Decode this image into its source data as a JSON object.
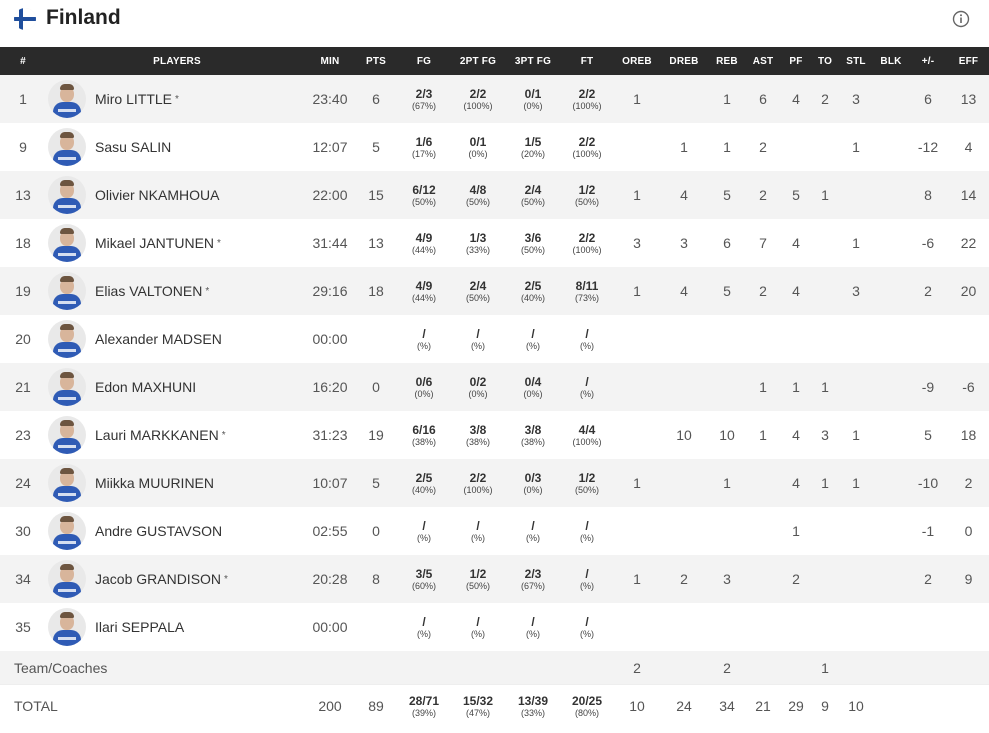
{
  "team": {
    "name": "Finland",
    "flag_icon": "finland-flag-icon",
    "info_icon": "info-icon"
  },
  "columns": [
    "#",
    "PLAYERS",
    "MIN",
    "PTS",
    "FG",
    "2PT FG",
    "3PT FG",
    "FT",
    "OREB",
    "DREB",
    "REB",
    "AST",
    "PF",
    "TO",
    "STL",
    "BLK",
    "+/-",
    "EFF"
  ],
  "players": [
    {
      "no": "1",
      "name": "Miro LITTLE",
      "starter": "*",
      "min": "23:40",
      "pts": "6",
      "fg": "2/3",
      "fg_pct": "(67%)",
      "fg2": "2/2",
      "fg2_pct": "(100%)",
      "fg3": "0/1",
      "fg3_pct": "(0%)",
      "ft": "2/2",
      "ft_pct": "(100%)",
      "oreb": "1",
      "dreb": "",
      "reb": "1",
      "ast": "6",
      "pf": "4",
      "to": "2",
      "stl": "3",
      "blk": "",
      "pm": "6",
      "eff": "13"
    },
    {
      "no": "9",
      "name": "Sasu SALIN",
      "starter": "",
      "min": "12:07",
      "pts": "5",
      "fg": "1/6",
      "fg_pct": "(17%)",
      "fg2": "0/1",
      "fg2_pct": "(0%)",
      "fg3": "1/5",
      "fg3_pct": "(20%)",
      "ft": "2/2",
      "ft_pct": "(100%)",
      "oreb": "",
      "dreb": "1",
      "reb": "1",
      "ast": "2",
      "pf": "",
      "to": "",
      "stl": "1",
      "blk": "",
      "pm": "-12",
      "eff": "4"
    },
    {
      "no": "13",
      "name": "Olivier NKAMHOUA",
      "starter": "",
      "min": "22:00",
      "pts": "15",
      "fg": "6/12",
      "fg_pct": "(50%)",
      "fg2": "4/8",
      "fg2_pct": "(50%)",
      "fg3": "2/4",
      "fg3_pct": "(50%)",
      "ft": "1/2",
      "ft_pct": "(50%)",
      "oreb": "1",
      "dreb": "4",
      "reb": "5",
      "ast": "2",
      "pf": "5",
      "to": "1",
      "stl": "",
      "blk": "",
      "pm": "8",
      "eff": "14"
    },
    {
      "no": "18",
      "name": "Mikael JANTUNEN",
      "starter": "*",
      "min": "31:44",
      "pts": "13",
      "fg": "4/9",
      "fg_pct": "(44%)",
      "fg2": "1/3",
      "fg2_pct": "(33%)",
      "fg3": "3/6",
      "fg3_pct": "(50%)",
      "ft": "2/2",
      "ft_pct": "(100%)",
      "oreb": "3",
      "dreb": "3",
      "reb": "6",
      "ast": "7",
      "pf": "4",
      "to": "",
      "stl": "1",
      "blk": "",
      "pm": "-6",
      "eff": "22"
    },
    {
      "no": "19",
      "name": "Elias VALTONEN",
      "starter": "*",
      "min": "29:16",
      "pts": "18",
      "fg": "4/9",
      "fg_pct": "(44%)",
      "fg2": "2/4",
      "fg2_pct": "(50%)",
      "fg3": "2/5",
      "fg3_pct": "(40%)",
      "ft": "8/11",
      "ft_pct": "(73%)",
      "oreb": "1",
      "dreb": "4",
      "reb": "5",
      "ast": "2",
      "pf": "4",
      "to": "",
      "stl": "3",
      "blk": "",
      "pm": "2",
      "eff": "20"
    },
    {
      "no": "20",
      "name": "Alexander MADSEN",
      "starter": "",
      "min": "00:00",
      "pts": "",
      "fg": "/",
      "fg_pct": "(%)",
      "fg2": "/",
      "fg2_pct": "(%)",
      "fg3": "/",
      "fg3_pct": "(%)",
      "ft": "/",
      "ft_pct": "(%)",
      "oreb": "",
      "dreb": "",
      "reb": "",
      "ast": "",
      "pf": "",
      "to": "",
      "stl": "",
      "blk": "",
      "pm": "",
      "eff": ""
    },
    {
      "no": "21",
      "name": "Edon MAXHUNI",
      "starter": "",
      "min": "16:20",
      "pts": "0",
      "fg": "0/6",
      "fg_pct": "(0%)",
      "fg2": "0/2",
      "fg2_pct": "(0%)",
      "fg3": "0/4",
      "fg3_pct": "(0%)",
      "ft": "/",
      "ft_pct": "(%)",
      "oreb": "",
      "dreb": "",
      "reb": "",
      "ast": "1",
      "pf": "1",
      "to": "1",
      "stl": "",
      "blk": "",
      "pm": "-9",
      "eff": "-6"
    },
    {
      "no": "23",
      "name": "Lauri MARKKANEN",
      "starter": "*",
      "min": "31:23",
      "pts": "19",
      "fg": "6/16",
      "fg_pct": "(38%)",
      "fg2": "3/8",
      "fg2_pct": "(38%)",
      "fg3": "3/8",
      "fg3_pct": "(38%)",
      "ft": "4/4",
      "ft_pct": "(100%)",
      "oreb": "",
      "dreb": "10",
      "reb": "10",
      "ast": "1",
      "pf": "4",
      "to": "3",
      "stl": "1",
      "blk": "",
      "pm": "5",
      "eff": "18"
    },
    {
      "no": "24",
      "name": "Miikka MUURINEN",
      "starter": "",
      "min": "10:07",
      "pts": "5",
      "fg": "2/5",
      "fg_pct": "(40%)",
      "fg2": "2/2",
      "fg2_pct": "(100%)",
      "fg3": "0/3",
      "fg3_pct": "(0%)",
      "ft": "1/2",
      "ft_pct": "(50%)",
      "oreb": "1",
      "dreb": "",
      "reb": "1",
      "ast": "",
      "pf": "4",
      "to": "1",
      "stl": "1",
      "blk": "",
      "pm": "-10",
      "eff": "2"
    },
    {
      "no": "30",
      "name": "Andre GUSTAVSON",
      "starter": "",
      "min": "02:55",
      "pts": "0",
      "fg": "/",
      "fg_pct": "(%)",
      "fg2": "/",
      "fg2_pct": "(%)",
      "fg3": "/",
      "fg3_pct": "(%)",
      "ft": "/",
      "ft_pct": "(%)",
      "oreb": "",
      "dreb": "",
      "reb": "",
      "ast": "",
      "pf": "1",
      "to": "",
      "stl": "",
      "blk": "",
      "pm": "-1",
      "eff": "0"
    },
    {
      "no": "34",
      "name": "Jacob GRANDISON",
      "starter": "*",
      "min": "20:28",
      "pts": "8",
      "fg": "3/5",
      "fg_pct": "(60%)",
      "fg2": "1/2",
      "fg2_pct": "(50%)",
      "fg3": "2/3",
      "fg3_pct": "(67%)",
      "ft": "/",
      "ft_pct": "(%)",
      "oreb": "1",
      "dreb": "2",
      "reb": "3",
      "ast": "",
      "pf": "2",
      "to": "",
      "stl": "",
      "blk": "",
      "pm": "2",
      "eff": "9"
    },
    {
      "no": "35",
      "name": "Ilari SEPPALA",
      "starter": "",
      "min": "00:00",
      "pts": "",
      "fg": "/",
      "fg_pct": "(%)",
      "fg2": "/",
      "fg2_pct": "(%)",
      "fg3": "/",
      "fg3_pct": "(%)",
      "ft": "/",
      "ft_pct": "(%)",
      "oreb": "",
      "dreb": "",
      "reb": "",
      "ast": "",
      "pf": "",
      "to": "",
      "stl": "",
      "blk": "",
      "pm": "",
      "eff": ""
    }
  ],
  "team_coaches": {
    "label": "Team/Coaches",
    "oreb": "2",
    "reb": "2",
    "to": "1"
  },
  "totals": {
    "label": "TOTAL",
    "min": "200",
    "pts": "89",
    "fg": "28/71",
    "fg_pct": "(39%)",
    "fg2": "15/32",
    "fg2_pct": "(47%)",
    "fg3": "13/39",
    "fg3_pct": "(33%)",
    "ft": "20/25",
    "ft_pct": "(80%)",
    "oreb": "10",
    "dreb": "24",
    "reb": "34",
    "ast": "21",
    "pf": "29",
    "to": "9",
    "stl": "10"
  },
  "colors": {
    "header_bg": "#2a2a2a",
    "stripe": "#f3f3f3",
    "jersey": "#2f5bb5",
    "flag_cross": "#1f4e9c"
  }
}
